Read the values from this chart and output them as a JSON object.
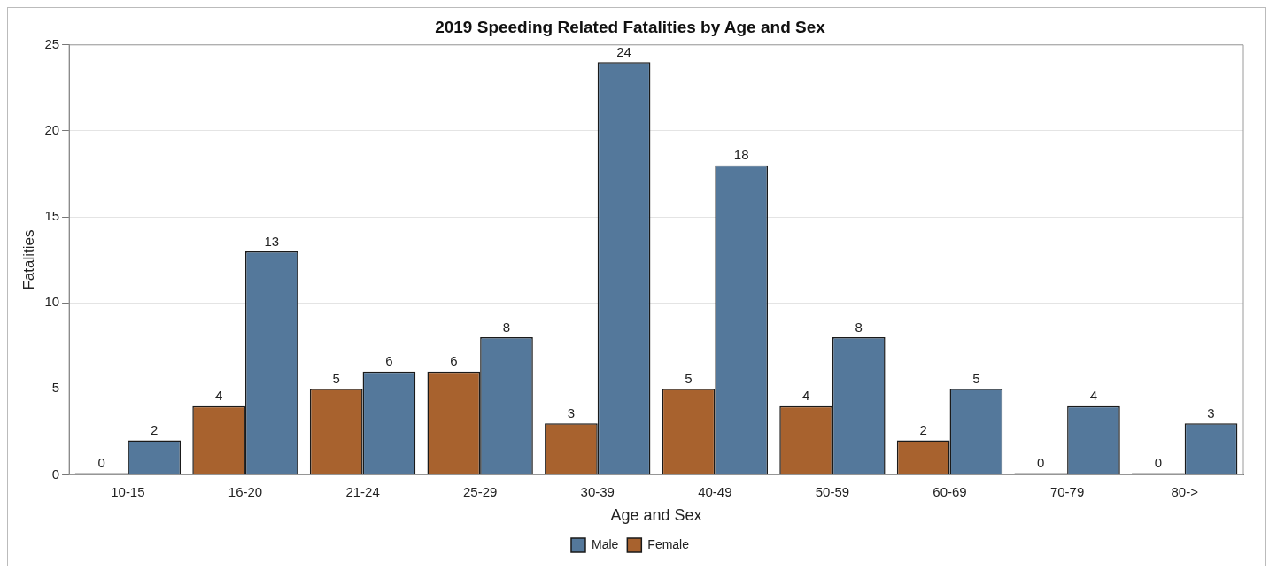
{
  "chart_data": {
    "type": "bar",
    "title": "2019 Speeding Related Fatalities by Age and Sex",
    "xlabel": "Age and Sex",
    "ylabel": "Fatalities",
    "categories": [
      "10-15",
      "16-20",
      "21-24",
      "25-29",
      "30-39",
      "40-49",
      "50-59",
      "60-69",
      "70-79",
      "80->"
    ],
    "series": [
      {
        "name": "Female",
        "color": "#a8622e",
        "values": [
          0,
          4,
          5,
          6,
          3,
          5,
          4,
          2,
          0,
          0
        ]
      },
      {
        "name": "Male",
        "color": "#54789b",
        "values": [
          2,
          13,
          6,
          8,
          24,
          18,
          8,
          5,
          4,
          3
        ]
      }
    ],
    "ylim": [
      0,
      25
    ],
    "yticks": [
      0,
      5,
      10,
      15,
      20,
      25
    ],
    "grid": "y",
    "legend": "bottom",
    "data_labels": true
  }
}
